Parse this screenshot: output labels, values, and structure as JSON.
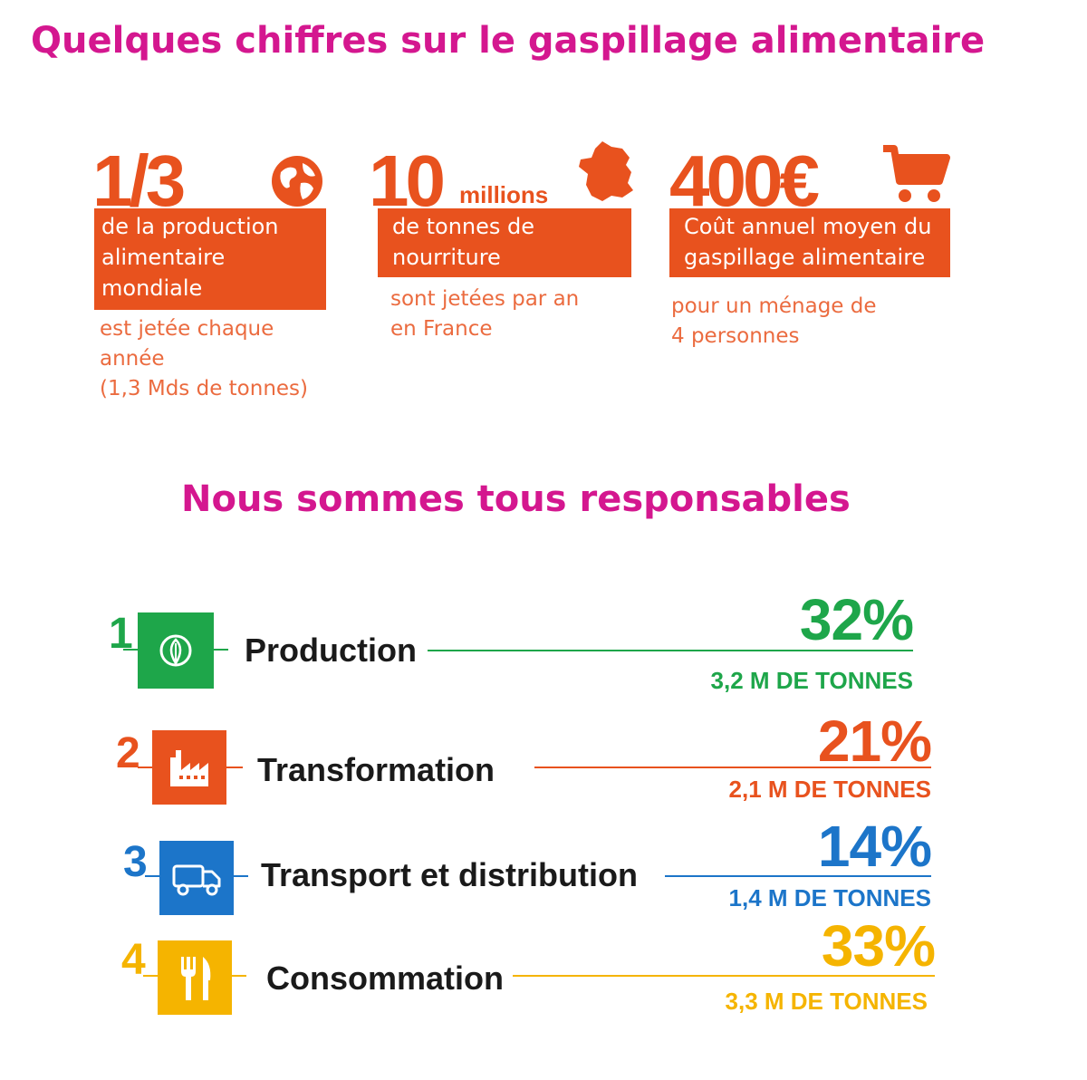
{
  "page": {
    "title": "Quelques chiffres sur le gaspillage alimentaire",
    "subtitle": "Nous sommes tous responsables"
  },
  "colors": {
    "title": "#d4178f",
    "stats_orange": "#e8521e",
    "production": "#1ea64a",
    "transformation": "#e8521e",
    "transport": "#1c75c9",
    "consommation": "#f5b400"
  },
  "stats": [
    {
      "big": "1/3",
      "icon": "globe-icon",
      "box_lines": [
        "de la production",
        "alimentaire",
        "mondiale"
      ],
      "sub_lines": [
        "est jetée chaque",
        "année",
        "(1,3 Mds de tonnes)"
      ]
    },
    {
      "big": "10",
      "big_suffix": "millions",
      "icon": "france-map-icon",
      "box_lines": [
        "de tonnes de",
        "nourriture"
      ],
      "sub_lines": [
        "sont jetées par an",
        "en France"
      ]
    },
    {
      "big": "400€",
      "icon": "shopping-cart-icon",
      "box_lines": [
        "Coût annuel moyen du",
        "gaspillage alimentaire"
      ],
      "sub_lines": [
        "pour un ménage de",
        "4 personnes"
      ]
    }
  ],
  "stages": [
    {
      "number": "1",
      "label": "Production",
      "icon": "leaf-icon",
      "percent": "32%",
      "tons": "3,2 M DE TONNES"
    },
    {
      "number": "2",
      "label": "Transformation",
      "icon": "factory-icon",
      "percent": "21%",
      "tons": "2,1 M DE TONNES"
    },
    {
      "number": "3",
      "label": "Transport et distribution",
      "icon": "truck-icon",
      "percent": "14%",
      "tons": "1,4 M DE TONNES"
    },
    {
      "number": "4",
      "label": "Consommation",
      "icon": "fork-knife-icon",
      "percent": "33%",
      "tons": "3,3 M DE TONNES"
    }
  ]
}
